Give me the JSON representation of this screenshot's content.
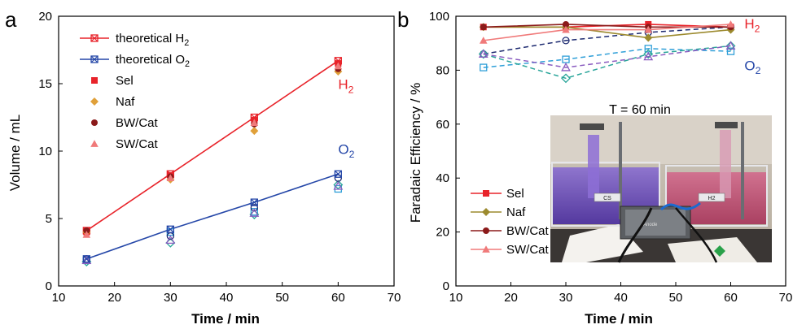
{
  "chart_data": [
    {
      "panel_label": "a",
      "type": "line",
      "xlabel": "Time / min",
      "ylabel": "Volume / mL",
      "xlim": [
        10,
        70
      ],
      "ylim": [
        0,
        20
      ],
      "x_ticks": [
        10,
        20,
        30,
        40,
        50,
        60,
        70
      ],
      "y_ticks": [
        0,
        5,
        10,
        15,
        20
      ],
      "legend_position": "top-left",
      "annotations": [
        {
          "text": "H",
          "sub": "2",
          "x": 60,
          "y": 14.6,
          "color": "#e8232a"
        },
        {
          "text": "O",
          "sub": "2",
          "x": 60,
          "y": 9.8,
          "color": "#2547a8"
        }
      ],
      "series": [
        {
          "name": "theoretical H",
          "name_sub": "2",
          "kind": "line",
          "marker": "square-x",
          "color": "#e8232a",
          "x": [
            15,
            30,
            45,
            60
          ],
          "y": [
            4.1,
            8.3,
            12.5,
            16.7
          ]
        },
        {
          "name": "theoretical O",
          "name_sub": "2",
          "kind": "line",
          "marker": "square-x",
          "color": "#2547a8",
          "x": [
            15,
            30,
            45,
            60
          ],
          "y": [
            2.0,
            4.2,
            6.2,
            8.3
          ]
        },
        {
          "name": "Sel",
          "kind": "points",
          "marker": "square",
          "color": "#e8232a",
          "x": [
            15,
            30,
            45,
            60
          ],
          "y": [
            4.0,
            8.2,
            12.3,
            16.5
          ]
        },
        {
          "name": "Naf",
          "kind": "points",
          "marker": "diamond",
          "color": "#e0a03a",
          "x": [
            15,
            30,
            45,
            60
          ],
          "y": [
            4.0,
            7.9,
            11.5,
            15.9
          ]
        },
        {
          "name": "BW/Cat",
          "kind": "points",
          "marker": "circle",
          "color": "#8b1a1a",
          "x": [
            15,
            30,
            45,
            60
          ],
          "y": [
            4.1,
            8.1,
            12.0,
            16.1
          ]
        },
        {
          "name": "SW/Cat",
          "kind": "points",
          "marker": "triangle",
          "color": "#f07a7a",
          "x": [
            15,
            30,
            45,
            60
          ],
          "y": [
            3.8,
            8.0,
            12.1,
            16.3
          ]
        }
      ],
      "extra_points": [
        {
          "marker": "square-open",
          "color": "#2f9fd8",
          "x": [
            15,
            30,
            45,
            60
          ],
          "y": [
            1.9,
            4.0,
            5.5,
            7.2
          ]
        },
        {
          "marker": "diamond-open",
          "color": "#2aa59a",
          "x": [
            15,
            30,
            45,
            60
          ],
          "y": [
            1.8,
            3.2,
            5.3,
            7.5
          ]
        },
        {
          "marker": "circle-open",
          "color": "#1d2a70",
          "x": [
            15,
            30,
            45,
            60
          ],
          "y": [
            2.0,
            3.7,
            5.8,
            8.0
          ]
        },
        {
          "marker": "triangle-open",
          "color": "#8a5cc0",
          "x": [
            15,
            30,
            45,
            60
          ],
          "y": [
            1.9,
            3.4,
            5.4,
            7.4
          ]
        }
      ]
    },
    {
      "panel_label": "b",
      "type": "line",
      "xlabel": "Time / min",
      "ylabel": "Faradaic Efficiency / %",
      "xlim": [
        10,
        70
      ],
      "ylim": [
        0,
        100
      ],
      "x_ticks": [
        10,
        20,
        30,
        40,
        50,
        60,
        70
      ],
      "y_ticks": [
        0,
        20,
        40,
        60,
        80,
        100
      ],
      "legend_position": "bottom-left",
      "inset_title": "T = 60 min",
      "annotations": [
        {
          "text": "H",
          "sub": "2",
          "x": 62.5,
          "y": 95.5,
          "color": "#e8232a"
        },
        {
          "text": "O",
          "sub": "2",
          "x": 62.5,
          "y": 80.0,
          "color": "#2547a8"
        }
      ],
      "series": [
        {
          "name": "Sel",
          "kind": "line",
          "marker": "square",
          "color": "#e8232a",
          "x": [
            15,
            30,
            45,
            60
          ],
          "y": [
            96,
            96,
            97,
            96
          ]
        },
        {
          "name": "Naf",
          "kind": "line",
          "marker": "diamond",
          "color": "#9c8a2e",
          "x": [
            15,
            30,
            45,
            60
          ],
          "y": [
            96,
            96,
            92,
            95
          ]
        },
        {
          "name": "BW/Cat",
          "kind": "line",
          "marker": "circle",
          "color": "#8b1a1a",
          "x": [
            15,
            30,
            45,
            60
          ],
          "y": [
            96,
            97,
            96,
            96
          ]
        },
        {
          "name": "SW/Cat",
          "kind": "line",
          "marker": "triangle",
          "color": "#f07a7a",
          "x": [
            15,
            30,
            45,
            60
          ],
          "y": [
            91,
            95,
            95,
            97
          ]
        }
      ],
      "extra_series": [
        {
          "kind": "dashed",
          "marker": "circle-open",
          "color": "#1d2a70",
          "x": [
            15,
            30,
            45,
            60
          ],
          "y": [
            86,
            91,
            94,
            96
          ]
        },
        {
          "kind": "dashed",
          "marker": "square-open",
          "color": "#2f9fd8",
          "x": [
            15,
            30,
            45,
            60
          ],
          "y": [
            81,
            84,
            88,
            87
          ]
        },
        {
          "kind": "dashed",
          "marker": "diamond-open",
          "color": "#2aa59a",
          "x": [
            15,
            30,
            45,
            60
          ],
          "y": [
            86,
            77,
            86,
            89
          ]
        },
        {
          "kind": "dashed",
          "marker": "triangle-open",
          "color": "#8a5cc0",
          "x": [
            15,
            30,
            45,
            60
          ],
          "y": [
            86,
            81,
            85,
            89
          ]
        }
      ],
      "inset_labels": [
        "CS",
        "H2",
        "Anode"
      ]
    }
  ]
}
